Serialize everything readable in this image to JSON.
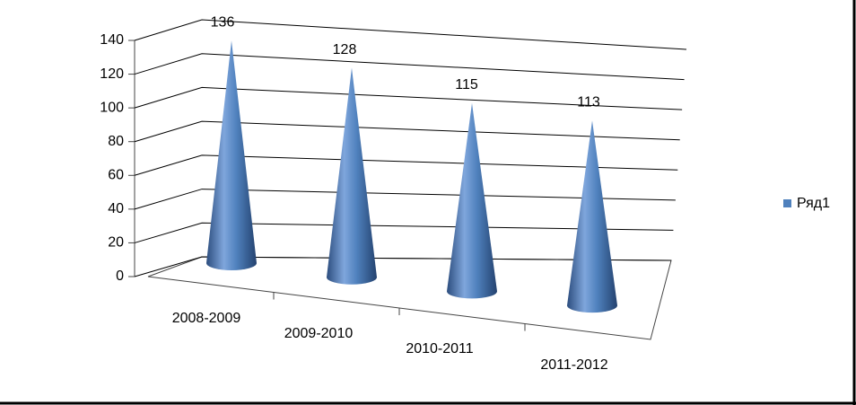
{
  "chart_data": {
    "type": "cone",
    "categories": [
      "2008-2009",
      "2009-2010",
      "2010-2011",
      "2011-2012"
    ],
    "series": [
      {
        "name": "Ряд1",
        "color": "#4f81bd",
        "values": [
          136,
          128,
          115,
          113
        ]
      }
    ],
    "ylim": [
      0,
      140
    ],
    "yticks": [
      0,
      20,
      40,
      60,
      80,
      100,
      120,
      140
    ],
    "grid": true,
    "legend": "right"
  }
}
